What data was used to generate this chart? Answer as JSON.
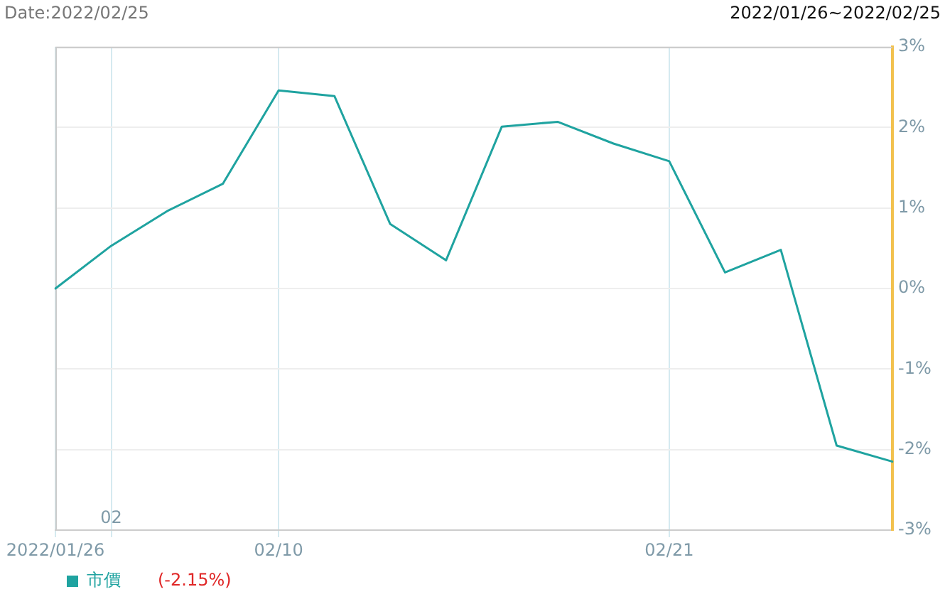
{
  "chart_data": {
    "type": "line",
    "title": "Date:2022/02/25",
    "subtitle": "2022/01/26~2022/02/25",
    "categories": [
      "2022/01/26",
      "02",
      null,
      null,
      "02/10",
      null,
      null,
      null,
      null,
      null,
      null,
      "02/21",
      null,
      null,
      null,
      null
    ],
    "series": [
      {
        "name": "市價",
        "color": "#1fa3a0",
        "values": [
          0,
          0.53,
          0.96,
          1.3,
          2.46,
          2.39,
          0.8,
          0.35,
          2.01,
          2.07,
          1.8,
          1.58,
          0.2,
          0.48,
          -1.95,
          -2.15
        ]
      }
    ],
    "ylim": [
      -3,
      3
    ],
    "yticks": [
      {
        "value": -3,
        "label": "-3%"
      },
      {
        "value": -2,
        "label": "-2%"
      },
      {
        "value": -1,
        "label": "-1%"
      },
      {
        "value": 0,
        "label": "0%"
      },
      {
        "value": 1,
        "label": "1%"
      },
      {
        "value": 2,
        "label": "2%"
      },
      {
        "value": 3,
        "label": "3%"
      }
    ],
    "grid": true,
    "legend": "bottom left",
    "marker": "none",
    "line_style": "solid",
    "annotations": [
      "(-2.15%)"
    ]
  }
}
